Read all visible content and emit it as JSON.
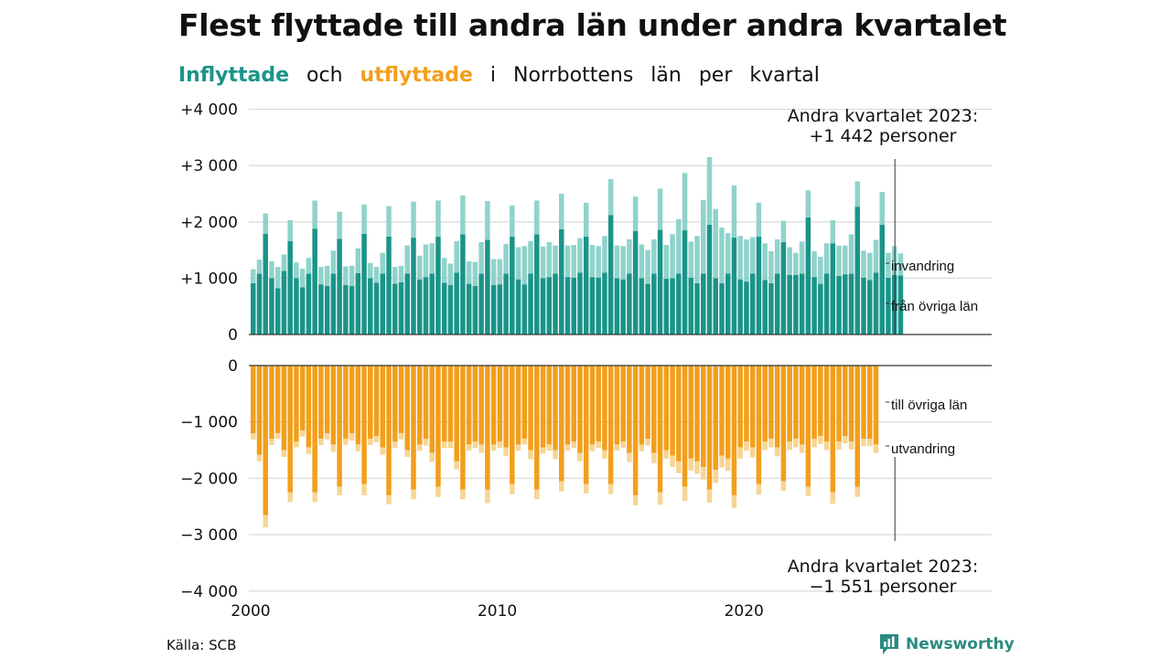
{
  "title": "Flest flyttade till andra län under andra kvartalet",
  "subtitle": {
    "part1": "Inflyttade",
    "part2": "och",
    "part3": "utflyttade",
    "part4": "i",
    "part5": "Norrbottens",
    "part6": "län",
    "part7": "per",
    "part8": "kvartal"
  },
  "source": "Källa: SCB",
  "logo_text": "Newsworthy",
  "colors": {
    "inflow_domestic": "#1a9488",
    "inflow_immigration": "#8fd3cb",
    "outflow_domestic": "#f29f1c",
    "outflow_emigration": "#f7d596",
    "grid": "#dddddd",
    "axis": "#333333",
    "logo": "#2a8a80"
  },
  "chart_data": [
    {
      "type": "bar",
      "stacked": true,
      "title": "Inflyttade",
      "x_start": "2000Q1",
      "x_ticks": [
        "2000",
        "2010",
        "2020"
      ],
      "y_ticks": [
        "0",
        "+1 000",
        "+2 000",
        "+3 000",
        "+4 000"
      ],
      "ylim": [
        0,
        4000
      ],
      "grid": true,
      "annotation": {
        "line1": "Andra kvartalet 2023:",
        "line2": "+1 442 personer"
      },
      "series": [
        {
          "name": "från övriga län",
          "values": [
            910,
            1080,
            1790,
            1000,
            820,
            1130,
            1660,
            1000,
            840,
            1080,
            1880,
            890,
            860,
            1080,
            1700,
            880,
            860,
            1090,
            1790,
            1000,
            920,
            1080,
            1740,
            900,
            930,
            1080,
            1720,
            980,
            1020,
            1080,
            1740,
            920,
            880,
            1100,
            1780,
            900,
            860,
            1080,
            1680,
            880,
            890,
            1080,
            1740,
            980,
            890,
            1080,
            1780,
            1000,
            1020,
            1080,
            1870,
            1020,
            1010,
            1100,
            1740,
            1020,
            1010,
            1100,
            2120,
            1000,
            980,
            1080,
            1840,
            1000,
            900,
            1080,
            1860,
            990,
            1000,
            1080,
            1850,
            1010,
            910,
            1080,
            1950,
            1000,
            910,
            1080,
            1720,
            980,
            940,
            1080,
            1740,
            970,
            910,
            1080,
            1640,
            1060,
            1060,
            1080,
            2080,
            1020,
            900,
            1080,
            1620,
            1040,
            1070,
            1080,
            2270,
            1010,
            970,
            1100,
            1950,
            1010,
            1060,
            1050
          ]
        },
        {
          "name": "invandring",
          "values": [
            250,
            250,
            360,
            300,
            380,
            290,
            370,
            280,
            330,
            280,
            500,
            310,
            360,
            410,
            480,
            330,
            360,
            440,
            520,
            270,
            280,
            370,
            540,
            300,
            290,
            500,
            640,
            420,
            580,
            540,
            640,
            440,
            380,
            560,
            690,
            400,
            430,
            560,
            690,
            460,
            450,
            530,
            550,
            570,
            680,
            580,
            600,
            560,
            620,
            500,
            630,
            560,
            580,
            610,
            600,
            570,
            560,
            650,
            640,
            580,
            590,
            610,
            610,
            600,
            600,
            610,
            730,
            600,
            780,
            970,
            1020,
            640,
            840,
            1310,
            1200,
            1230,
            990,
            720,
            930,
            770,
            750,
            650,
            600,
            650,
            570,
            610,
            380,
            490,
            390,
            570,
            480,
            460,
            480,
            540,
            410,
            540,
            510,
            700,
            450,
            480,
            480,
            580,
            580,
            440,
            510,
            392
          ]
        }
      ]
    },
    {
      "type": "bar",
      "stacked": true,
      "title": "Utflyttade",
      "x_start": "2000Q1",
      "x_ticks": [
        "2000",
        "2010",
        "2020"
      ],
      "y_ticks": [
        "0",
        "−1 000",
        "−2 000",
        "−3 000",
        "−4 000"
      ],
      "ylim": [
        -4000,
        0
      ],
      "grid": true,
      "annotation": {
        "line1": "Andra kvartalet 2023:",
        "line2": "−1 551 personer"
      },
      "series": [
        {
          "name": "till övriga län",
          "values": [
            -1200,
            -1580,
            -2650,
            -1300,
            -1200,
            -1500,
            -2250,
            -1350,
            -1150,
            -1450,
            -2250,
            -1300,
            -1200,
            -1400,
            -2150,
            -1300,
            -1200,
            -1400,
            -2100,
            -1300,
            -1250,
            -1450,
            -2300,
            -1350,
            -1200,
            -1500,
            -2200,
            -1400,
            -1300,
            -1550,
            -2150,
            -1350,
            -1350,
            -1700,
            -2200,
            -1400,
            -1350,
            -1400,
            -2200,
            -1400,
            -1350,
            -1450,
            -2100,
            -1400,
            -1300,
            -1500,
            -2200,
            -1450,
            -1400,
            -1500,
            -2050,
            -1400,
            -1350,
            -1550,
            -2100,
            -1400,
            -1350,
            -1500,
            -2100,
            -1400,
            -1350,
            -1550,
            -2300,
            -1400,
            -1300,
            -1550,
            -2250,
            -1500,
            -1600,
            -1700,
            -2150,
            -1650,
            -1700,
            -1800,
            -2200,
            -1850,
            -1600,
            -1650,
            -2300,
            -1450,
            -1350,
            -1450,
            -2100,
            -1350,
            -1300,
            -1450,
            -2050,
            -1350,
            -1300,
            -1400,
            -2150,
            -1300,
            -1250,
            -1350,
            -2250,
            -1350,
            -1250,
            -1350,
            -2150,
            -1300,
            -1300,
            -1400
          ]
        },
        {
          "name": "utvandring",
          "values": [
            -110,
            -120,
            -220,
            -110,
            -100,
            -120,
            -170,
            -100,
            -110,
            -120,
            -170,
            -110,
            -110,
            -130,
            -150,
            -110,
            -130,
            -120,
            -200,
            -110,
            -110,
            -130,
            -160,
            -110,
            -110,
            -120,
            -170,
            -110,
            -120,
            -160,
            -180,
            -110,
            -110,
            -140,
            -170,
            -110,
            -110,
            -150,
            -240,
            -110,
            -110,
            -150,
            -180,
            -110,
            -100,
            -160,
            -170,
            -110,
            -110,
            -160,
            -180,
            -110,
            -110,
            -150,
            -170,
            -120,
            -110,
            -150,
            -180,
            -110,
            -110,
            -160,
            -180,
            -120,
            -120,
            -180,
            -220,
            -150,
            -200,
            -210,
            -250,
            -210,
            -220,
            -220,
            -230,
            -230,
            -210,
            -220,
            -230,
            -200,
            -160,
            -180,
            -190,
            -150,
            -150,
            -160,
            -170,
            -150,
            -150,
            -150,
            -160,
            -150,
            -140,
            -150,
            -200,
            -140,
            -130,
            -140,
            -180,
            -130,
            -130,
            -151
          ]
        }
      ]
    }
  ]
}
